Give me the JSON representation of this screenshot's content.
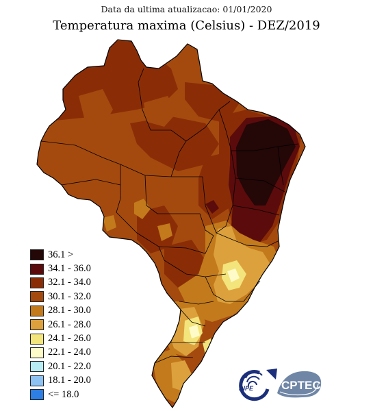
{
  "header": {
    "update_line": "Data da ultima atualizacao: 01/01/2020",
    "title": "Temperatura maxima (Celsius) - DEZ/2019"
  },
  "legend": [
    {
      "label": "36.1 >",
      "color": "#240707"
    },
    {
      "label": "34.1 - 36.0",
      "color": "#5b0b0b"
    },
    {
      "label": "32.1 - 34.0",
      "color": "#8a2d07"
    },
    {
      "label": "30.1 - 32.0",
      "color": "#a44a0e"
    },
    {
      "label": "28.1 - 30.0",
      "color": "#c27a1c"
    },
    {
      "label": "26.1 - 28.0",
      "color": "#dca13d"
    },
    {
      "label": "24.1 - 26.0",
      "color": "#f3e47c"
    },
    {
      "label": "22.1 - 24.0",
      "color": "#fefbc8"
    },
    {
      "label": "20.1 - 22.0",
      "color": "#b7ecf5"
    },
    {
      "label": "18.1 - 20.0",
      "color": "#8ec2f2"
    },
    {
      "label": "<= 18.0",
      "color": "#2d7fe6"
    }
  ],
  "logos": {
    "inpe": "INPE",
    "cptec": "CPTEC"
  }
}
